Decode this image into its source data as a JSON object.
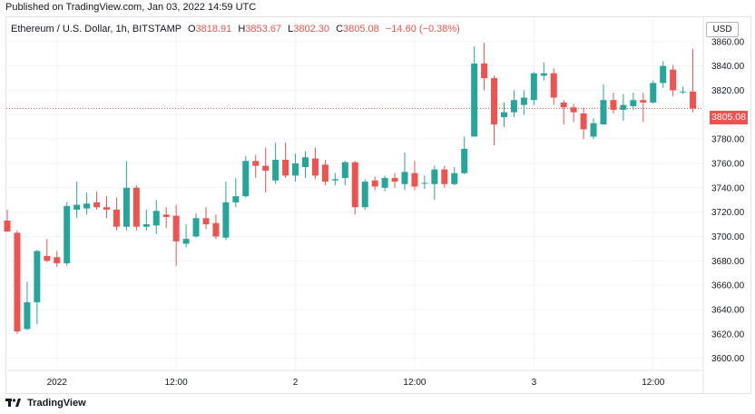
{
  "header": {
    "published": "Published on TradingView.com, Jan 03, 2022 14:59 UTC"
  },
  "legend": {
    "symbol": "Ethereum / U.S. Dollar, 1h, BITSTAMP",
    "o_key": "O",
    "o": "3818.91",
    "h_key": "H",
    "h": "3853.67",
    "l_key": "L",
    "l": "3802.30",
    "c_key": "C",
    "c": "3805.08",
    "change": "−14.60 (−0.38%)"
  },
  "currency_badge": "USD",
  "last_price_label": "3805.08",
  "footer": {
    "brand": "TradingView"
  },
  "colors": {
    "up": "#26a69a",
    "down": "#ef5350",
    "grid": "#f0f3fa",
    "axis_line": "#e0e3eb"
  },
  "chart_data": {
    "type": "candlestick",
    "title": "",
    "xlabel": "",
    "ylabel": "",
    "ylim": [
      3590,
      3880
    ],
    "y_ticks": [
      3600,
      3620,
      3640,
      3660,
      3680,
      3700,
      3720,
      3740,
      3760,
      3780,
      3800,
      3820,
      3840,
      3860
    ],
    "y_tick_labels": [
      "3600.00",
      "3620.00",
      "3640.00",
      "3660.00",
      "3680.00",
      "3700.00",
      "3720.00",
      "3740.00",
      "3760.00",
      "3780.00",
      "3800.00",
      "3820.00",
      "3840.00",
      "3860.00"
    ],
    "x_tick_labels": [
      {
        "label": "2022",
        "index": 5
      },
      {
        "label": "12:00",
        "index": 17
      },
      {
        "label": "2",
        "index": 29
      },
      {
        "label": "12:00",
        "index": 41
      },
      {
        "label": "3",
        "index": 53
      },
      {
        "label": "12:00",
        "index": 65
      }
    ],
    "last_price": 3805.08,
    "candles": [
      {
        "o": 3713,
        "h": 3722,
        "l": 3705,
        "c": 3704
      },
      {
        "o": 3703,
        "h": 3705,
        "l": 3620,
        "c": 3622
      },
      {
        "o": 3624,
        "h": 3663,
        "l": 3623,
        "c": 3646
      },
      {
        "o": 3646,
        "h": 3689,
        "l": 3628,
        "c": 3688
      },
      {
        "o": 3684,
        "h": 3698,
        "l": 3679,
        "c": 3680
      },
      {
        "o": 3683,
        "h": 3688,
        "l": 3675,
        "c": 3678
      },
      {
        "o": 3678,
        "h": 3728,
        "l": 3676,
        "c": 3725
      },
      {
        "o": 3722,
        "h": 3745,
        "l": 3715,
        "c": 3726
      },
      {
        "o": 3723,
        "h": 3736,
        "l": 3718,
        "c": 3727
      },
      {
        "o": 3728,
        "h": 3737,
        "l": 3722,
        "c": 3724
      },
      {
        "o": 3724,
        "h": 3733,
        "l": 3715,
        "c": 3722
      },
      {
        "o": 3722,
        "h": 3732,
        "l": 3705,
        "c": 3708
      },
      {
        "o": 3708,
        "h": 3762,
        "l": 3705,
        "c": 3740
      },
      {
        "o": 3740,
        "h": 3742,
        "l": 3705,
        "c": 3708
      },
      {
        "o": 3708,
        "h": 3722,
        "l": 3705,
        "c": 3710
      },
      {
        "o": 3709,
        "h": 3730,
        "l": 3702,
        "c": 3721
      },
      {
        "o": 3718,
        "h": 3724,
        "l": 3707,
        "c": 3716
      },
      {
        "o": 3717,
        "h": 3726,
        "l": 3676,
        "c": 3696
      },
      {
        "o": 3694,
        "h": 3710,
        "l": 3691,
        "c": 3698
      },
      {
        "o": 3700,
        "h": 3719,
        "l": 3699,
        "c": 3715
      },
      {
        "o": 3715,
        "h": 3724,
        "l": 3706,
        "c": 3710
      },
      {
        "o": 3711,
        "h": 3718,
        "l": 3698,
        "c": 3700
      },
      {
        "o": 3699,
        "h": 3745,
        "l": 3697,
        "c": 3728
      },
      {
        "o": 3728,
        "h": 3748,
        "l": 3724,
        "c": 3733
      },
      {
        "o": 3733,
        "h": 3766,
        "l": 3732,
        "c": 3762
      },
      {
        "o": 3762,
        "h": 3767,
        "l": 3748,
        "c": 3758
      },
      {
        "o": 3758,
        "h": 3773,
        "l": 3736,
        "c": 3754
      },
      {
        "o": 3746,
        "h": 3777,
        "l": 3743,
        "c": 3763
      },
      {
        "o": 3763,
        "h": 3777,
        "l": 3748,
        "c": 3750
      },
      {
        "o": 3750,
        "h": 3768,
        "l": 3745,
        "c": 3760
      },
      {
        "o": 3757,
        "h": 3770,
        "l": 3748,
        "c": 3765
      },
      {
        "o": 3764,
        "h": 3773,
        "l": 3747,
        "c": 3750
      },
      {
        "o": 3759,
        "h": 3763,
        "l": 3742,
        "c": 3745
      },
      {
        "o": 3746,
        "h": 3752,
        "l": 3742,
        "c": 3747
      },
      {
        "o": 3748,
        "h": 3762,
        "l": 3742,
        "c": 3761
      },
      {
        "o": 3761,
        "h": 3762,
        "l": 3718,
        "c": 3724
      },
      {
        "o": 3724,
        "h": 3747,
        "l": 3722,
        "c": 3745
      },
      {
        "o": 3746,
        "h": 3749,
        "l": 3738,
        "c": 3741
      },
      {
        "o": 3740,
        "h": 3750,
        "l": 3737,
        "c": 3748
      },
      {
        "o": 3748,
        "h": 3752,
        "l": 3740,
        "c": 3745
      },
      {
        "o": 3743,
        "h": 3769,
        "l": 3738,
        "c": 3753
      },
      {
        "o": 3752,
        "h": 3762,
        "l": 3738,
        "c": 3741
      },
      {
        "o": 3744,
        "h": 3750,
        "l": 3739,
        "c": 3744
      },
      {
        "o": 3743,
        "h": 3758,
        "l": 3730,
        "c": 3755
      },
      {
        "o": 3755,
        "h": 3758,
        "l": 3740,
        "c": 3743
      },
      {
        "o": 3743,
        "h": 3757,
        "l": 3742,
        "c": 3752
      },
      {
        "o": 3752,
        "h": 3782,
        "l": 3751,
        "c": 3772
      },
      {
        "o": 3782,
        "h": 3856,
        "l": 3782,
        "c": 3842
      },
      {
        "o": 3842,
        "h": 3859,
        "l": 3820,
        "c": 3830
      },
      {
        "o": 3830,
        "h": 3832,
        "l": 3775,
        "c": 3792
      },
      {
        "o": 3798,
        "h": 3810,
        "l": 3790,
        "c": 3802
      },
      {
        "o": 3802,
        "h": 3820,
        "l": 3798,
        "c": 3812
      },
      {
        "o": 3808,
        "h": 3820,
        "l": 3800,
        "c": 3814
      },
      {
        "o": 3812,
        "h": 3835,
        "l": 3808,
        "c": 3834
      },
      {
        "o": 3832,
        "h": 3843,
        "l": 3828,
        "c": 3834
      },
      {
        "o": 3834,
        "h": 3838,
        "l": 3808,
        "c": 3814
      },
      {
        "o": 3810,
        "h": 3812,
        "l": 3792,
        "c": 3806
      },
      {
        "o": 3806,
        "h": 3809,
        "l": 3794,
        "c": 3802
      },
      {
        "o": 3801,
        "h": 3806,
        "l": 3780,
        "c": 3788
      },
      {
        "o": 3782,
        "h": 3797,
        "l": 3780,
        "c": 3793
      },
      {
        "o": 3792,
        "h": 3825,
        "l": 3792,
        "c": 3812
      },
      {
        "o": 3812,
        "h": 3818,
        "l": 3801,
        "c": 3804
      },
      {
        "o": 3804,
        "h": 3817,
        "l": 3795,
        "c": 3808
      },
      {
        "o": 3807,
        "h": 3818,
        "l": 3804,
        "c": 3812
      },
      {
        "o": 3812,
        "h": 3818,
        "l": 3794,
        "c": 3810
      },
      {
        "o": 3810,
        "h": 3828,
        "l": 3809,
        "c": 3826
      },
      {
        "o": 3826,
        "h": 3844,
        "l": 3822,
        "c": 3840
      },
      {
        "o": 3837,
        "h": 3841,
        "l": 3815,
        "c": 3820
      },
      {
        "o": 3819,
        "h": 3823,
        "l": 3817,
        "c": 3819
      },
      {
        "o": 3819,
        "h": 3854,
        "l": 3802,
        "c": 3805
      }
    ]
  }
}
